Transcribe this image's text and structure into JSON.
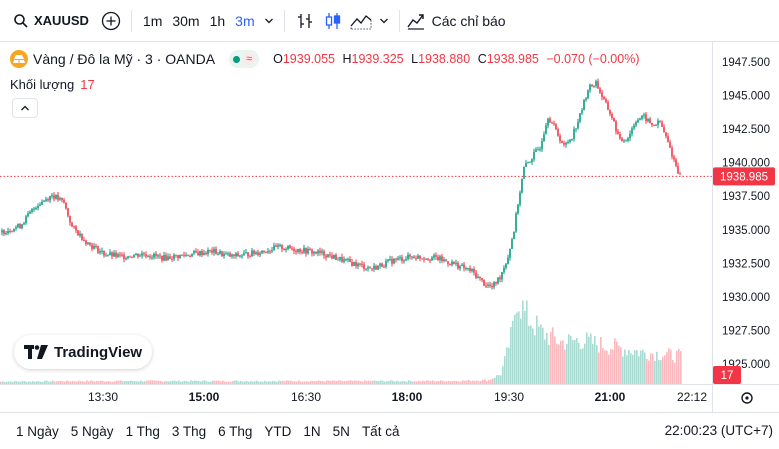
{
  "toolbar": {
    "symbol": "XAUUSD",
    "timeframes": [
      "1m",
      "30m",
      "1h",
      "3m"
    ],
    "active_timeframe": "3m",
    "indicators_label": "Các chỉ báo"
  },
  "legend": {
    "title": "Vàng / Đô la Mỹ · 3 · OANDA",
    "open_key": "O",
    "open": "1939.055",
    "high_key": "H",
    "high": "1939.325",
    "low_key": "L",
    "low": "1938.880",
    "close_key": "C",
    "close": "1938.985",
    "change": "−0.070 (−0.00%)",
    "volume_label": "Khối lượng",
    "volume_value": "17"
  },
  "logo_text": "TradingView",
  "bottom": {
    "ranges": [
      "1 Ngày",
      "5 Ngày",
      "1 Thg",
      "3 Thg",
      "6 Thg",
      "YTD",
      "1N",
      "5N",
      "Tất cả"
    ],
    "clock": "22:00:23 (UTC+7)"
  },
  "colors": {
    "up": "#089981",
    "down": "#f23645",
    "accent": "#2962ff"
  },
  "chart_data": {
    "type": "candlestick",
    "y_ticks": [
      "1947.500",
      "1945.000",
      "1942.500",
      "1940.000",
      "1937.500",
      "1935.000",
      "1932.500",
      "1930.000",
      "1927.500",
      "1925.000"
    ],
    "ylim": [
      1923.5,
      1949.0
    ],
    "x_ticks": [
      "13:30",
      "15:00",
      "16:30",
      "18:00",
      "19:30",
      "21:00",
      "22:12"
    ],
    "last_price": 1938.985,
    "last_price_label": "1938.985",
    "last_volume_label": "17",
    "path_points": [
      [
        0,
        1934.8
      ],
      [
        10,
        1935.3
      ],
      [
        18,
        1936.8
      ],
      [
        26,
        1937.6
      ],
      [
        32,
        1937.0
      ],
      [
        36,
        1935.2
      ],
      [
        44,
        1934.0
      ],
      [
        52,
        1933.2
      ],
      [
        60,
        1933.0
      ],
      [
        72,
        1933.2
      ],
      [
        82,
        1932.9
      ],
      [
        92,
        1933.1
      ],
      [
        106,
        1933.4
      ],
      [
        116,
        1933.0
      ],
      [
        128,
        1933.3
      ],
      [
        140,
        1933.7
      ],
      [
        150,
        1933.5
      ],
      [
        162,
        1933.2
      ],
      [
        174,
        1932.6
      ],
      [
        186,
        1932.1
      ],
      [
        196,
        1932.7
      ],
      [
        206,
        1933.0
      ],
      [
        218,
        1932.9
      ],
      [
        228,
        1932.4
      ],
      [
        236,
        1931.9
      ],
      [
        242,
        1931.0
      ],
      [
        246,
        1930.7
      ],
      [
        250,
        1931.5
      ],
      [
        254,
        1933.0
      ],
      [
        257,
        1935.0
      ],
      [
        259,
        1937.0
      ],
      [
        262,
        1939.6
      ],
      [
        266,
        1940.4
      ],
      [
        270,
        1941.2
      ],
      [
        274,
        1943.5
      ],
      [
        278,
        1942.4
      ],
      [
        282,
        1941.2
      ],
      [
        286,
        1942.0
      ],
      [
        290,
        1943.5
      ],
      [
        294,
        1945.5
      ],
      [
        298,
        1946.0
      ],
      [
        302,
        1944.6
      ],
      [
        306,
        1943.4
      ],
      [
        310,
        1941.6
      ],
      [
        314,
        1941.9
      ],
      [
        318,
        1943.2
      ],
      [
        322,
        1943.4
      ],
      [
        326,
        1942.8
      ],
      [
        330,
        1943.0
      ],
      [
        334,
        1941.5
      ],
      [
        337,
        1940.2
      ],
      [
        340,
        1939.0
      ]
    ],
    "volume_points": [
      [
        0,
        2.5
      ],
      [
        40,
        3
      ],
      [
        80,
        3
      ],
      [
        120,
        3
      ],
      [
        160,
        3
      ],
      [
        200,
        3
      ],
      [
        230,
        3.2
      ],
      [
        244,
        4
      ],
      [
        250,
        10
      ],
      [
        253,
        30
      ],
      [
        256,
        55
      ],
      [
        258,
        90
      ],
      [
        262,
        70
      ],
      [
        270,
        52
      ],
      [
        280,
        42
      ],
      [
        290,
        44
      ],
      [
        298,
        40
      ],
      [
        310,
        36
      ],
      [
        320,
        32
      ],
      [
        330,
        30
      ],
      [
        340,
        28
      ]
    ]
  }
}
